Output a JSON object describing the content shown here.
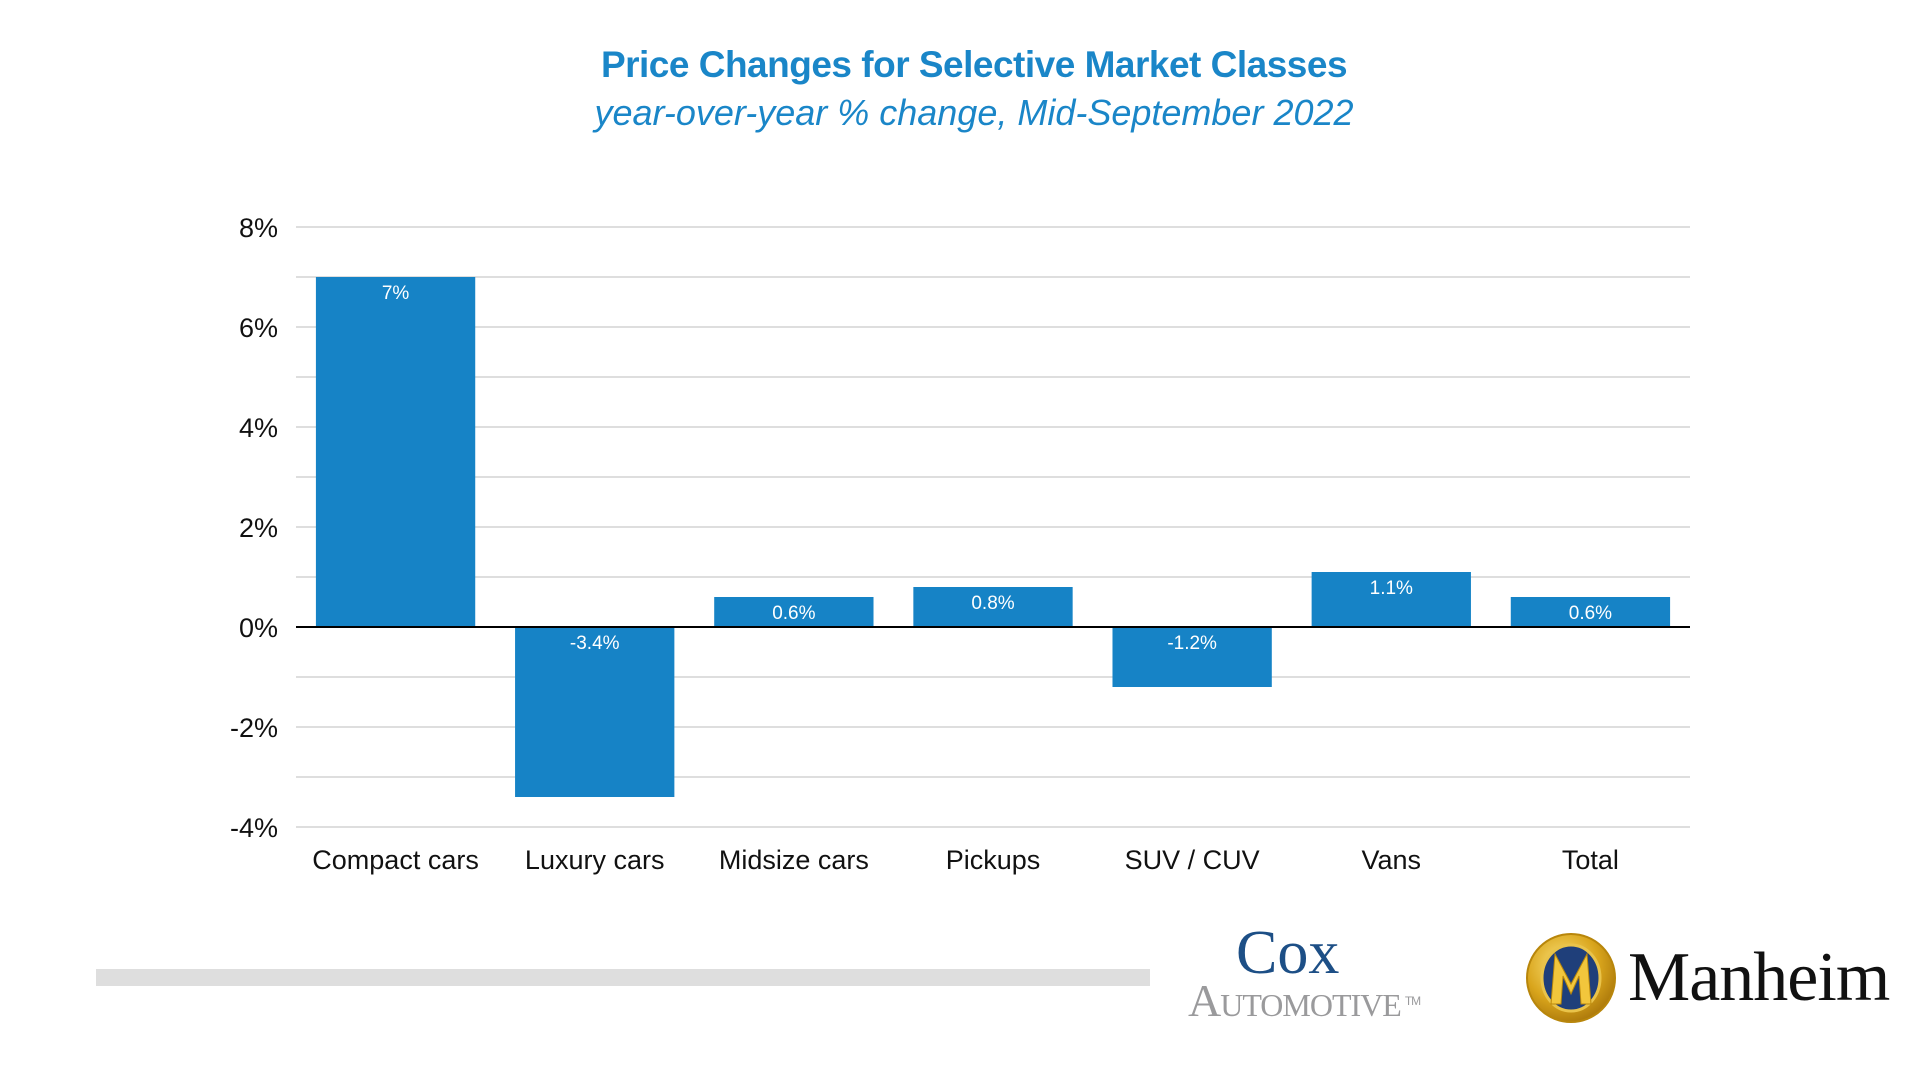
{
  "chart_data": {
    "type": "bar",
    "title": "Price Changes for Selective Market Classes",
    "subtitle": "year-over-year % change, Mid-September 2022",
    "xlabel": "",
    "ylabel": "",
    "categories": [
      "Compact cars",
      "Luxury cars",
      "Midsize cars",
      "Pickups",
      "SUV / CUV",
      "Vans",
      "Total"
    ],
    "values": [
      7.0,
      -3.4,
      0.6,
      0.8,
      -1.2,
      1.1,
      0.6
    ],
    "data_labels": [
      "7%",
      "-3.4%",
      "0.6%",
      "0.8%",
      "-1.2%",
      "1.1%",
      "0.6%"
    ],
    "ylim": [
      -4,
      8
    ],
    "yticks": [
      8,
      6,
      4,
      2,
      0,
      -2,
      -4
    ],
    "ytick_labels": [
      "8%",
      "6%",
      "4%",
      "2%",
      "0%",
      "-2%",
      "-4%"
    ],
    "minor_gridlines": [
      7,
      5,
      3,
      1,
      -1,
      -3
    ],
    "grid": true,
    "legend": "none",
    "colors": {
      "bar": "#1683c6",
      "title": "#1a86c8",
      "grid": "#d4d4d4",
      "zero_line": "#000000",
      "axis_text": "#111111",
      "data_label": "#ffffff"
    }
  },
  "logos": {
    "cox_top": "Cox",
    "cox_bottom": "Automotive",
    "cox_tm": "TM",
    "cox_top_color": "#1d4f86",
    "manheim": "Manheim",
    "manheim_emblem_letter": "M"
  },
  "footer": {
    "divider_color": "#dedede"
  }
}
